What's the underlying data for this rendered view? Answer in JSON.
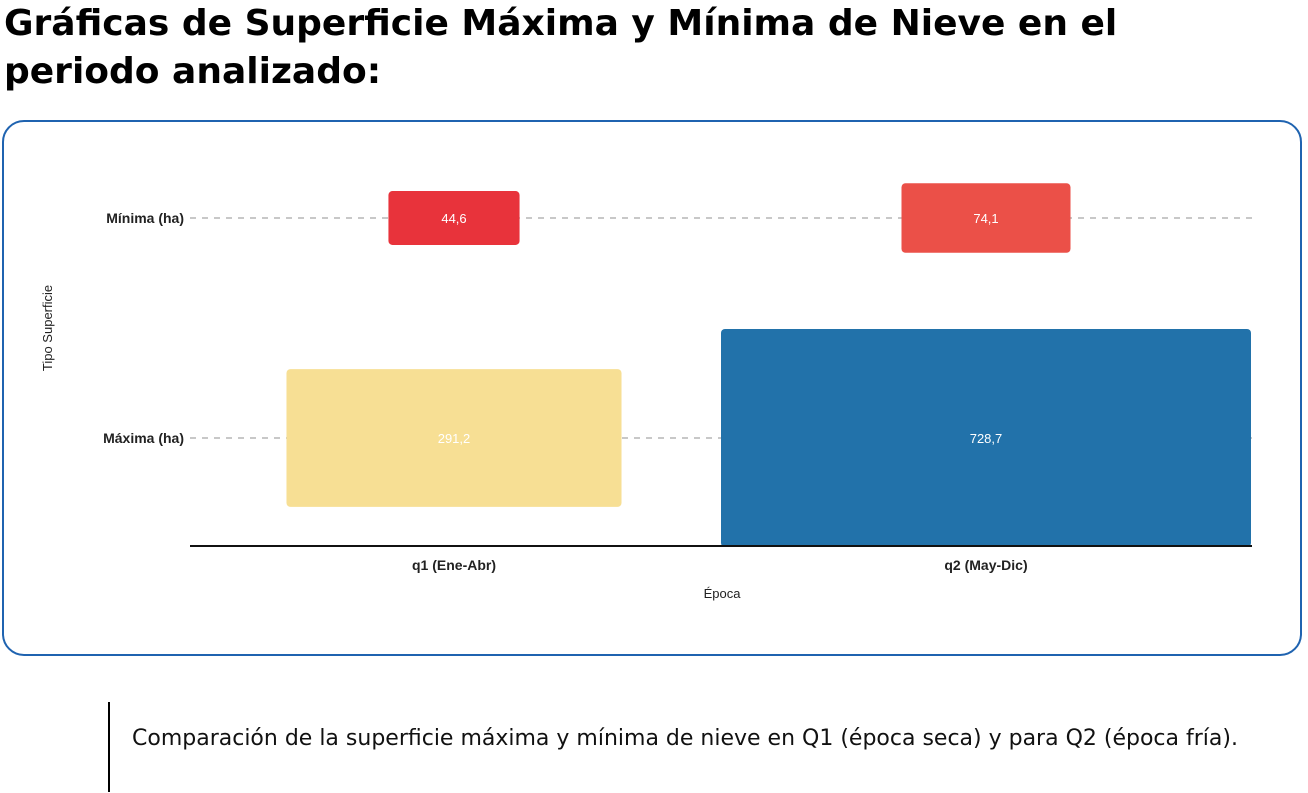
{
  "title": "Gráficas de Superficie Máxima y Mínima de Nieve en el periodo analizado:",
  "caption": "Comparación de la superficie máxima y mínima de nieve en Q1 (época seca) y para Q2 (época fría).",
  "colors": {
    "card_border": "#1f63b0",
    "grid_line": "#b5b5b5",
    "axis_line": "#111111",
    "label_text": "#ffffff"
  },
  "chart_data": {
    "type": "heatmap",
    "xlabel": "Época",
    "ylabel": "Tipo Superficie",
    "categories": [
      "q1 (Ene-Abr)",
      "q2 (May-Dic)"
    ],
    "rows": [
      "Mínima (ha)",
      "Máxima (ha)"
    ],
    "series": [
      {
        "name": "Mínima (ha)",
        "values": [
          44.6,
          74.1
        ],
        "labels": [
          "44,6",
          "74,1"
        ],
        "colors": [
          "#e8333b",
          "#eb5048"
        ]
      },
      {
        "name": "Máxima (ha)",
        "values": [
          291.2,
          728.7
        ],
        "labels": [
          "291,2",
          "728,7"
        ],
        "colors": [
          "#f7df94",
          "#2272aa"
        ]
      }
    ],
    "grid": true,
    "legend": "none"
  }
}
